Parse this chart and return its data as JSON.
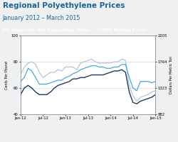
{
  "title": "Regional Polyethylene Prices",
  "subtitle": "January 2012 – March 2015",
  "subtitle2": "IHS Chemicals Net Transaction  Index  -  LLDPE Butene Prices",
  "ylabel_left": "Cents Per Pound",
  "ylabel_right": "Dollars Per Metric Ton",
  "ylim_left": [
    40,
    100
  ],
  "ylim_right": [
    882,
    2205
  ],
  "yticks_left": [
    40,
    60,
    80,
    100
  ],
  "yticks_right": [
    882,
    1323,
    1764,
    2205
  ],
  "xtick_labels": [
    "Jan-12",
    "Jul-12",
    "Jan-13",
    "Jul-13",
    "Jan-14",
    "Jul-14",
    "Jan-15"
  ],
  "north_america": [
    65,
    68,
    75,
    73,
    68,
    63,
    63,
    63,
    64,
    65,
    66,
    66,
    68,
    69,
    71,
    72,
    74,
    75,
    76,
    77,
    77,
    76,
    76,
    75,
    75,
    76,
    76,
    78,
    78,
    68,
    60,
    58,
    65,
    65,
    65,
    64,
    65
  ],
  "west_europe": [
    70,
    76,
    79,
    80,
    78,
    72,
    68,
    70,
    72,
    72,
    74,
    73,
    76,
    76,
    76,
    74,
    79,
    80,
    81,
    82,
    80,
    79,
    79,
    79,
    79,
    80,
    80,
    82,
    81,
    62,
    54,
    50,
    53,
    54,
    55,
    57,
    58
  ],
  "northeast_asia": [
    55,
    60,
    62,
    60,
    57,
    55,
    55,
    55,
    57,
    60,
    62,
    63,
    64,
    65,
    67,
    67,
    68,
    68,
    69,
    70,
    70,
    70,
    70,
    71,
    72,
    73,
    73,
    74,
    72,
    57,
    49,
    48,
    50,
    51,
    52,
    53,
    55
  ],
  "color_na": "#4da6d8",
  "color_we": "#b0c8d8",
  "color_nea": "#1f3864",
  "background_fig": "#eef0f2",
  "background_plot": "#ffffff",
  "background_header": "#607d8b",
  "title_color": "#1a6496",
  "subtitle_color": "#1a6496",
  "header_text_color": "#ffffff",
  "n_points": 37
}
